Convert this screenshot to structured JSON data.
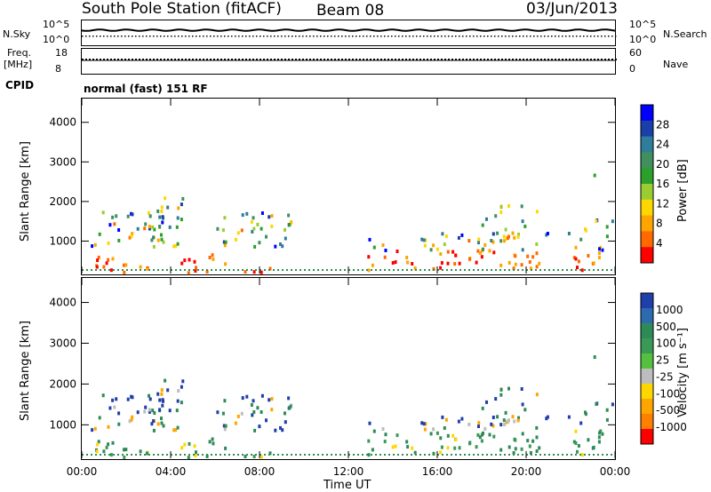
{
  "header": {
    "station": "South Pole Station (fitACF)",
    "beam": "Beam 08",
    "date": "03/Jun/2013"
  },
  "summary_panels": {
    "nsky": {
      "label": "N.Sky",
      "ticks": [
        "10^5",
        "10^0"
      ]
    },
    "nsearch": {
      "label": "N.Search",
      "ticks": [
        "10^5",
        "10^0"
      ]
    },
    "freq": {
      "label_line1": "Freq.",
      "label_line2": "[MHz]",
      "ticks": [
        "18",
        "8"
      ]
    },
    "nave": {
      "label": "Nave",
      "ticks": [
        "60",
        "0"
      ]
    },
    "cpid": {
      "label": "CPID",
      "value": "normal (fast) 151 RF"
    }
  },
  "chart_data": [
    {
      "type": "heatmap",
      "title": "Power",
      "ylabel": "Slant Range [km]",
      "xlabel": "Time UT",
      "x_ticks": [
        "00:00",
        "04:00",
        "08:00",
        "12:00",
        "16:00",
        "20:00",
        "00:00"
      ],
      "y_ticks": [
        1000,
        2000,
        3000,
        4000
      ],
      "ylim": [
        180,
        4600
      ],
      "colorbar": {
        "label": "Power [dB]",
        "ticks": [
          "4",
          "8",
          "12",
          "16",
          "20",
          "24",
          "28"
        ],
        "colors": [
          "#0000ff",
          "#1a3fa8",
          "#2e7d9a",
          "#3f8f5f",
          "#2ca02c",
          "#9acd32",
          "#ffd700",
          "#ffa500",
          "#ff6a00",
          "#ff0000"
        ]
      }
    },
    {
      "type": "heatmap",
      "title": "Velocity",
      "ylabel": "Slant Range [km]",
      "xlabel": "Time UT",
      "x_ticks": [
        "00:00",
        "04:00",
        "08:00",
        "12:00",
        "16:00",
        "20:00",
        "00:00"
      ],
      "y_ticks": [
        1000,
        2000,
        3000,
        4000
      ],
      "ylim": [
        180,
        4600
      ],
      "colorbar": {
        "label": "Velocity [m s⁻¹]",
        "ticks": [
          "1000",
          "500",
          "100",
          "25",
          "-25",
          "-100",
          "-500",
          "-1000"
        ],
        "colors": [
          "#1f3faa",
          "#2e6ab0",
          "#2e8b57",
          "#3a9a55",
          "#55c040",
          "#bdbdbd",
          "#ffd700",
          "#ffa500",
          "#ff7f00",
          "#ff0000"
        ]
      }
    }
  ]
}
